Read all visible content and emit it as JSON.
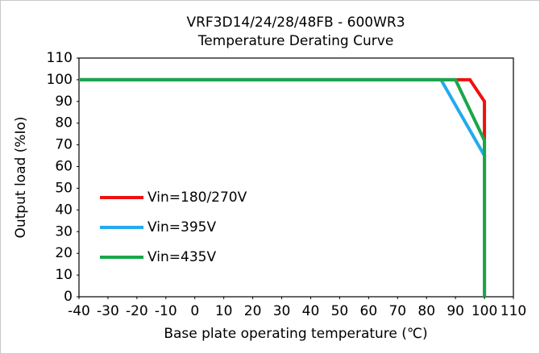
{
  "chart_data": {
    "type": "line",
    "title": "VRF3D14/24/28/48FB - 600WR3",
    "subtitle": "Temperature Derating Curve",
    "x_label": "Base plate operating temperature (℃)",
    "y_label": "Output load (%Io)",
    "series": [
      {
        "name": "Vin=180/270V",
        "color": "#ee1111",
        "x": [
          -40,
          95,
          100,
          100
        ],
        "values": [
          100,
          100,
          90,
          0
        ]
      },
      {
        "name": "Vin=395V",
        "color": "#22aaee",
        "x": [
          -40,
          85,
          100,
          100
        ],
        "values": [
          100,
          100,
          65,
          0
        ]
      },
      {
        "name": "Vin=435V",
        "color": "#1aa64a",
        "x": [
          -40,
          90,
          100,
          100
        ],
        "values": [
          100,
          100,
          72,
          0
        ]
      }
    ],
    "xlim": [
      -40,
      110
    ],
    "xticks": [
      -40,
      -30,
      -20,
      -10,
      0,
      10,
      20,
      30,
      40,
      50,
      60,
      70,
      80,
      90,
      100,
      110
    ],
    "ylim": [
      0,
      110
    ],
    "yticks": [
      0,
      10,
      20,
      30,
      40,
      50,
      60,
      70,
      80,
      90,
      100,
      110
    ],
    "grid": false,
    "legend": "lower left"
  }
}
